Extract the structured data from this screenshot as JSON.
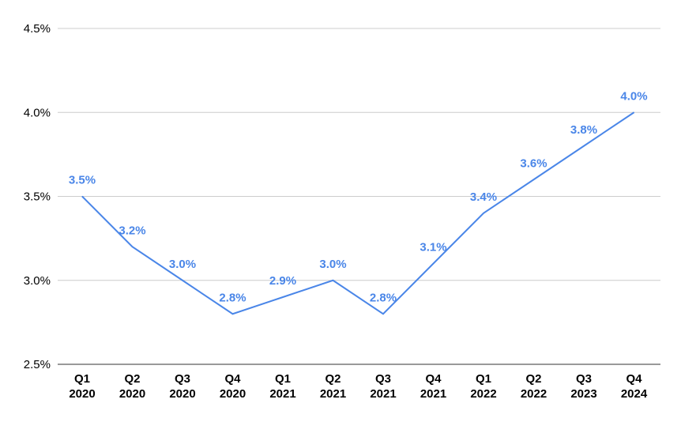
{
  "chart_data": {
    "type": "line",
    "title": "",
    "xlabel": "",
    "ylabel": "",
    "categories": [
      [
        "Q1",
        "2020"
      ],
      [
        "Q2",
        "2020"
      ],
      [
        "Q3",
        "2020"
      ],
      [
        "Q4",
        "2020"
      ],
      [
        "Q1",
        "2021"
      ],
      [
        "Q2",
        "2021"
      ],
      [
        "Q3",
        "2021"
      ],
      [
        "Q4",
        "2021"
      ],
      [
        "Q1",
        "2022"
      ],
      [
        "Q2",
        "2022"
      ],
      [
        "Q3",
        "2023"
      ],
      [
        "Q4",
        "2024"
      ]
    ],
    "series": [
      {
        "values": [
          3.5,
          3.2,
          3.0,
          2.8,
          2.9,
          3.0,
          2.8,
          3.1,
          3.4,
          3.6,
          3.8,
          4.0
        ],
        "data_labels": [
          "3.5%",
          "3.2%",
          "3.0%",
          "2.8%",
          "2.9%",
          "3.0%",
          "2.8%",
          "3.1%",
          "3.4%",
          "3.6%",
          "3.8%",
          "4.0%"
        ],
        "color": "#4a86e8"
      }
    ],
    "ylim": [
      2.5,
      4.5
    ],
    "yticks": [
      2.5,
      3.0,
      3.5,
      4.0,
      4.5
    ],
    "ytick_labels": [
      "2.5%",
      "3.0%",
      "3.5%",
      "4.0%",
      "4.5%"
    ],
    "grid": true,
    "gridline_color": "#cccccc",
    "axis_color": "#333333",
    "legend": "none"
  }
}
